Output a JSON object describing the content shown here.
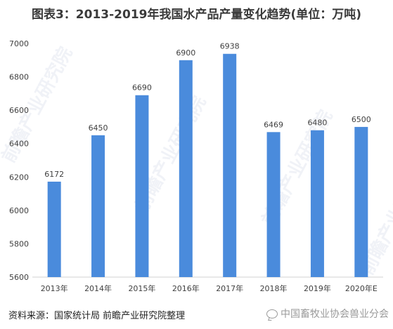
{
  "title": "图表3：2013-2019年我国水产品产量变化趋势(单位：万吨)",
  "footer": {
    "source": "资料来源：国家统计局 前瞻产业研究院整理",
    "account": "中国畜牧业协会兽业分会"
  },
  "watermark": "前瞻产业研究院",
  "colors": {
    "bar": "#4a8bdc",
    "axis": "#d0d0d0",
    "text": "#404040"
  },
  "chart_data": {
    "type": "bar",
    "title": "图表3：2013-2019年我国水产品产量变化趋势(单位：万吨)",
    "categories": [
      "2013年",
      "2014年",
      "2015年",
      "2016年",
      "2017年",
      "2018年",
      "2019年",
      "2020年E"
    ],
    "values": [
      6172,
      6450,
      6690,
      6900,
      6938,
      6469,
      6480,
      6500
    ],
    "ylim": [
      5600,
      7000
    ],
    "yticks": [
      5600,
      5800,
      6000,
      6200,
      6400,
      6600,
      6800,
      7000
    ],
    "grid": false,
    "xlabel": "",
    "ylabel": ""
  }
}
